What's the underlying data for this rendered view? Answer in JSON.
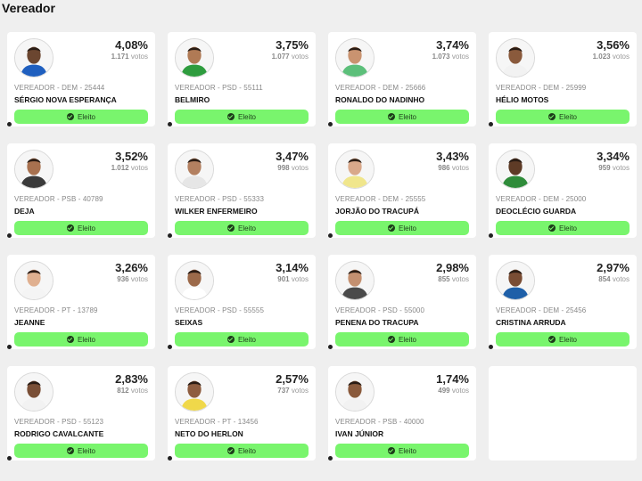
{
  "page": {
    "title": "Vereador"
  },
  "badge_label": "Eleito",
  "colors": {
    "badge": "#79f56d",
    "card": "#ffffff",
    "background": "#efefef"
  },
  "candidates": [
    {
      "pct": "4,08%",
      "votes_num": "1.171",
      "votes_label": "votos",
      "role": "VEREADOR - DEM - 25444",
      "name": "SÉRGIO NOVA ESPERANÇA",
      "shirt": "#1f5fbf",
      "skin": "#6b4630"
    },
    {
      "pct": "3,75%",
      "votes_num": "1.077",
      "votes_label": "votos",
      "role": "VEREADOR - PSD - 55111",
      "name": "BELMIRO",
      "shirt": "#2e9c3e",
      "skin": "#b07a55"
    },
    {
      "pct": "3,74%",
      "votes_num": "1.073",
      "votes_label": "votos",
      "role": "VEREADOR - DEM - 25666",
      "name": "RONALDO DO NADINHO",
      "shirt": "#5cbf7a",
      "skin": "#c99370"
    },
    {
      "pct": "3,56%",
      "votes_num": "1.023",
      "votes_label": "votos",
      "role": "VEREADOR - DEM - 25999",
      "name": "HÉLIO MOTOS",
      "shirt": "#f2f2f2",
      "skin": "#8a5a3c"
    },
    {
      "pct": "3,52%",
      "votes_num": "1.012",
      "votes_label": "votos",
      "role": "VEREADOR - PSB - 40789",
      "name": "DEJA",
      "shirt": "#3a3a3a",
      "skin": "#a8714f"
    },
    {
      "pct": "3,47%",
      "votes_num": "998",
      "votes_label": "votos",
      "role": "VEREADOR - PSD - 55333",
      "name": "WILKER ENFERMEIRO",
      "shirt": "#e6e6e6",
      "skin": "#b38060"
    },
    {
      "pct": "3,43%",
      "votes_num": "986",
      "votes_label": "votos",
      "role": "VEREADOR - DEM - 25555",
      "name": "JORJÃO DO TRACUPÁ",
      "shirt": "#f0e68c",
      "skin": "#d9a88a"
    },
    {
      "pct": "3,34%",
      "votes_num": "959",
      "votes_label": "votos",
      "role": "VEREADOR - DEM - 25000",
      "name": "DEOCLÉCIO GUARDA",
      "shirt": "#2f8c3a",
      "skin": "#5e3b26"
    },
    {
      "pct": "3,26%",
      "votes_num": "936",
      "votes_label": "votos",
      "role": "VEREADOR - PT - 13789",
      "name": "JEANNE",
      "shirt": "#f4f4f4",
      "skin": "#e0b090"
    },
    {
      "pct": "3,14%",
      "votes_num": "901",
      "votes_label": "votos",
      "role": "VEREADOR - PSD - 55555",
      "name": "SEIXAS",
      "shirt": "#ffffff",
      "skin": "#9c6a4a"
    },
    {
      "pct": "2,98%",
      "votes_num": "855",
      "votes_label": "votos",
      "role": "VEREADOR - PSD - 55000",
      "name": "PENENA DO TRACUPA",
      "shirt": "#4a4a4a",
      "skin": "#c49070"
    },
    {
      "pct": "2,97%",
      "votes_num": "854",
      "votes_label": "votos",
      "role": "VEREADOR - DEM - 25456",
      "name": "CRISTINA ARRUDA",
      "shirt": "#1e5fa8",
      "skin": "#7a4d34"
    },
    {
      "pct": "2,83%",
      "votes_num": "812",
      "votes_label": "votos",
      "role": "VEREADOR - PSD - 55123",
      "name": "RODRIGO CAVALCANTE",
      "shirt": "#f2f2f2",
      "skin": "#7a4f36"
    },
    {
      "pct": "2,57%",
      "votes_num": "737",
      "votes_label": "votos",
      "role": "VEREADOR - PT - 13456",
      "name": "NETO DO HERLON",
      "shirt": "#f0d84a",
      "skin": "#8e5d40"
    },
    {
      "pct": "1,74%",
      "votes_num": "499",
      "votes_label": "votos",
      "role": "VEREADOR - PSB - 40000",
      "name": "IVAN JÚNIOR",
      "shirt": "#f2f2f2",
      "skin": "#8a5a3c"
    }
  ]
}
